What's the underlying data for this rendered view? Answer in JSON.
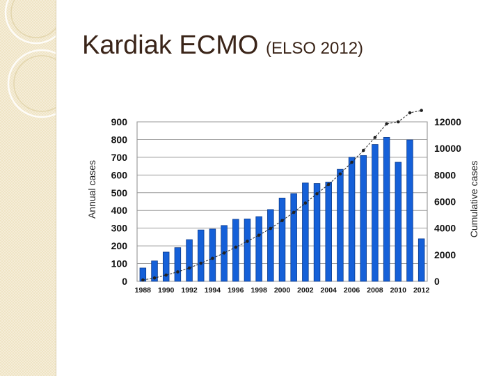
{
  "title": {
    "main": "Kardiak ECMO",
    "paren": "(ELSO 2012)"
  },
  "colors": {
    "bar": "#1560d8",
    "bar_stroke": "#0a3a8c",
    "line": "#222222",
    "title": "#3a2418",
    "panel": "#efe4c4"
  },
  "chart_data": {
    "type": "bar",
    "title": "",
    "xlabel": "",
    "ylabel": "Annual cases",
    "y2label": "Cumulative cases",
    "ylim": [
      0,
      900
    ],
    "y2lim": [
      0,
      12000
    ],
    "yticks": [
      "0",
      "100",
      "200",
      "300",
      "400",
      "500",
      "600",
      "700",
      "800",
      "900"
    ],
    "y2ticks": [
      "0",
      "2000",
      "4000",
      "6000",
      "8000",
      "10000",
      "12000"
    ],
    "xticks": [
      "1988",
      "1990",
      "1992",
      "1994",
      "1996",
      "1998",
      "2000",
      "2002",
      "2004",
      "2006",
      "2008",
      "2010",
      "2012"
    ],
    "grid": true,
    "categories": [
      "1988",
      "1989",
      "1990",
      "1991",
      "1992",
      "1993",
      "1994",
      "1995",
      "1996",
      "1997",
      "1998",
      "1999",
      "2000",
      "2001",
      "2002",
      "2003",
      "2004",
      "2005",
      "2006",
      "2007",
      "2008",
      "2009",
      "2010",
      "2011",
      "2012"
    ],
    "series": [
      {
        "axis": "left",
        "type": "bar",
        "values": [
          75,
          115,
          165,
          190,
          235,
          290,
          295,
          315,
          350,
          352,
          365,
          405,
          470,
          495,
          555,
          552,
          560,
          632,
          700,
          710,
          772,
          812,
          672,
          798,
          240
        ]
      },
      {
        "axis": "right",
        "type": "line",
        "values": [
          100,
          250,
          470,
          710,
          1000,
          1360,
          1730,
          2130,
          2570,
          3010,
          3470,
          3980,
          4570,
          5190,
          5890,
          6590,
          7290,
          8080,
          8960,
          9850,
          10830,
          11850,
          12000,
          12680,
          12860
        ]
      }
    ]
  }
}
